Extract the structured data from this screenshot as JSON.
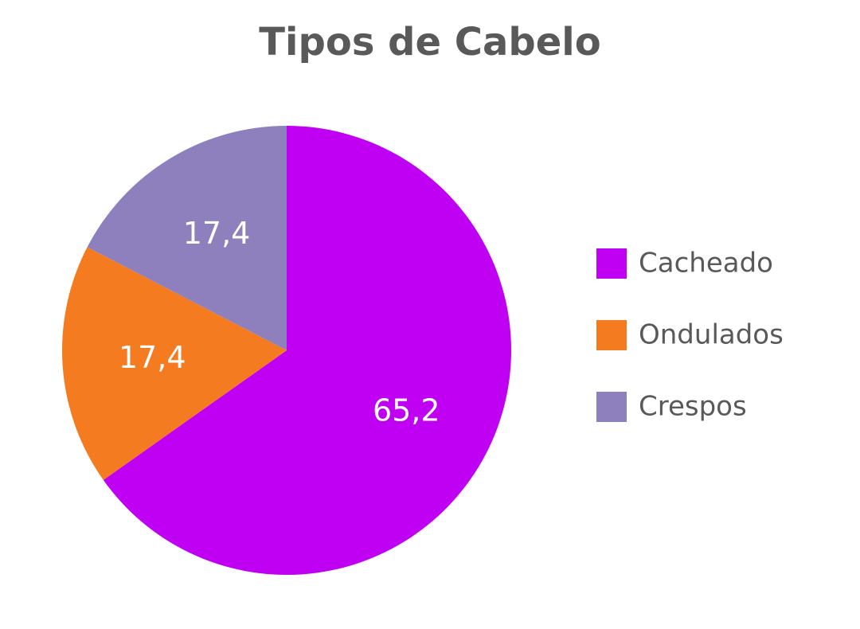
{
  "chart_data": {
    "type": "pie",
    "title": "Tipos de Cabelo",
    "categories": [
      "Cacheado",
      "Ondulados",
      "Crespos"
    ],
    "values": [
      65.2,
      17.4,
      17.4
    ],
    "value_labels": [
      "65,2",
      "17,4",
      "17,4"
    ],
    "colors": [
      "#c000f2",
      "#f47b20",
      "#8e80bc"
    ],
    "legend": "right"
  }
}
